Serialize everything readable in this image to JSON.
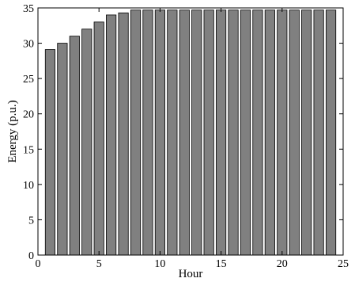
{
  "chart_data": {
    "type": "bar",
    "title": "",
    "xlabel": "Hour",
    "ylabel": "Energy (p.u.)",
    "xlim": [
      0,
      25
    ],
    "ylim": [
      0,
      35
    ],
    "xticks": [
      0,
      5,
      10,
      15,
      20,
      25
    ],
    "yticks": [
      0,
      5,
      10,
      15,
      20,
      25,
      30,
      35
    ],
    "grid": false,
    "bar_color": "#808080",
    "x": [
      1,
      2,
      3,
      4,
      5,
      6,
      7,
      8,
      9,
      10,
      11,
      12,
      13,
      14,
      15,
      16,
      17,
      18,
      19,
      20,
      21,
      22,
      23,
      24
    ],
    "values": [
      29.1,
      30.0,
      31.0,
      32.0,
      33.0,
      34.0,
      34.3,
      34.7,
      34.7,
      34.7,
      34.7,
      34.7,
      34.7,
      34.7,
      34.7,
      34.7,
      34.7,
      34.7,
      34.7,
      34.7,
      34.7,
      34.7,
      34.7,
      34.7
    ]
  }
}
